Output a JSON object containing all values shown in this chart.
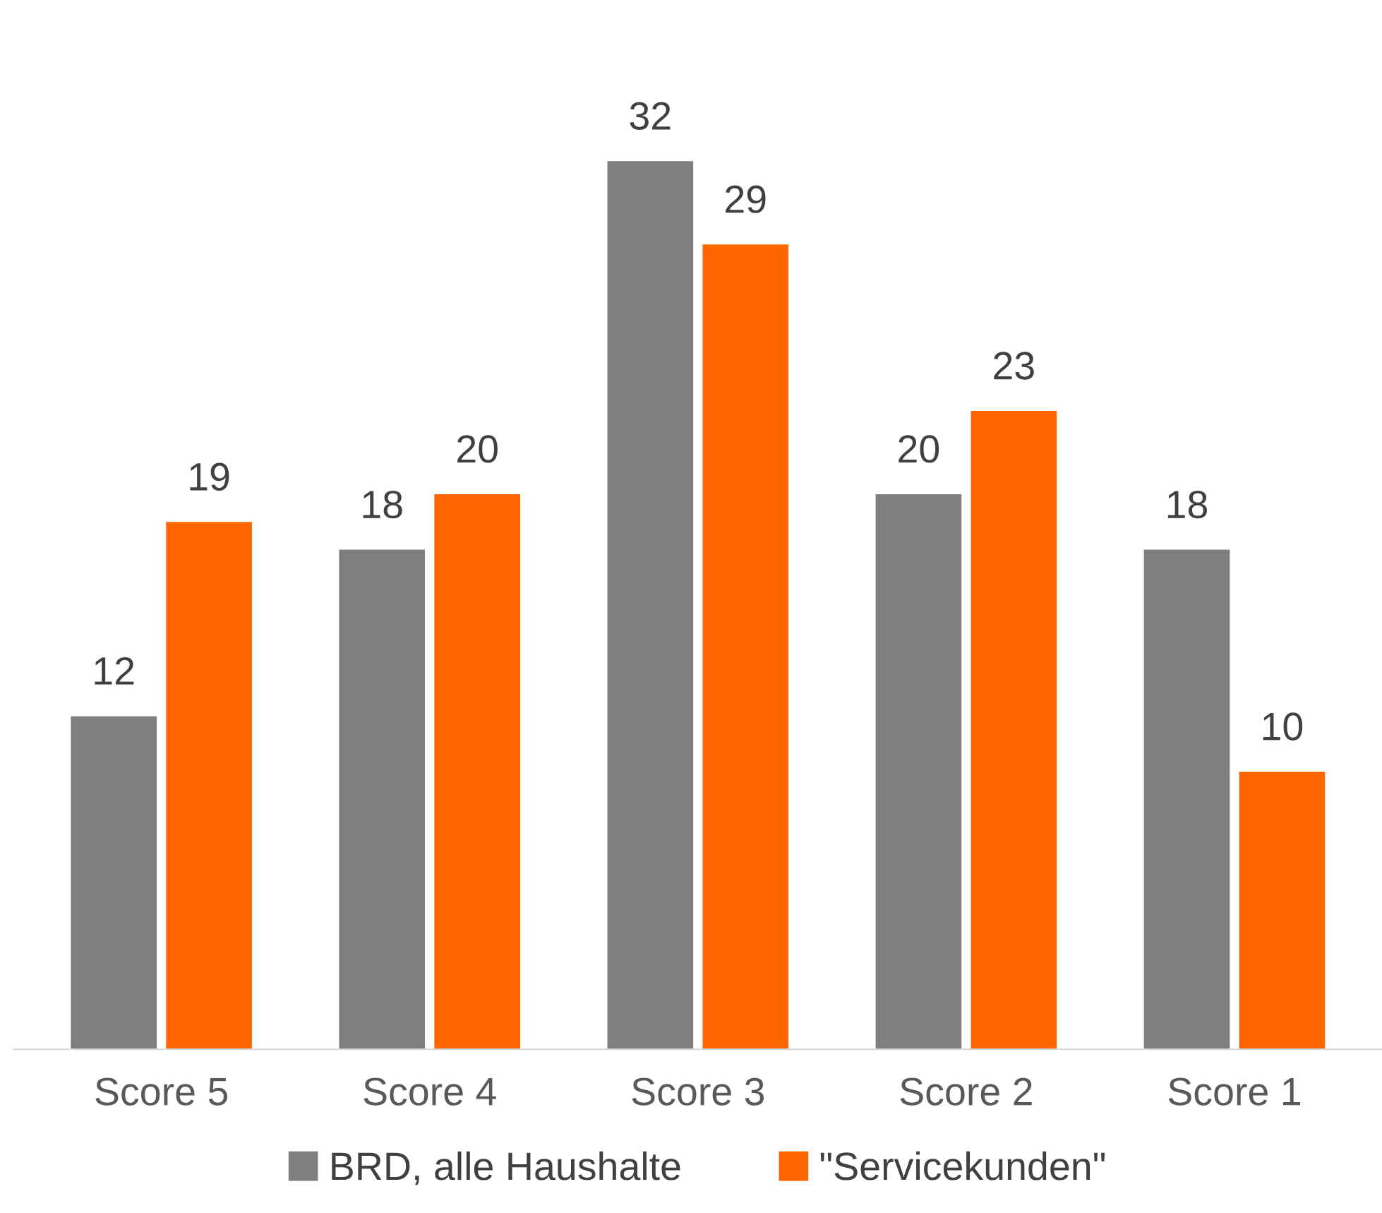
{
  "chart_data": {
    "type": "bar",
    "categories": [
      "Score 5",
      "Score 4",
      "Score 3",
      "Score 2",
      "Score 1"
    ],
    "series": [
      {
        "name": "BRD, alle Haushalte",
        "color": "#7f7f7f",
        "values": [
          12,
          18,
          32,
          20,
          18
        ]
      },
      {
        "name": "\"Servicekunden\"",
        "color": "#ff6600",
        "values": [
          19,
          20,
          29,
          23,
          10
        ]
      }
    ],
    "data_labels": true,
    "legend": "bottom",
    "grid": false
  }
}
